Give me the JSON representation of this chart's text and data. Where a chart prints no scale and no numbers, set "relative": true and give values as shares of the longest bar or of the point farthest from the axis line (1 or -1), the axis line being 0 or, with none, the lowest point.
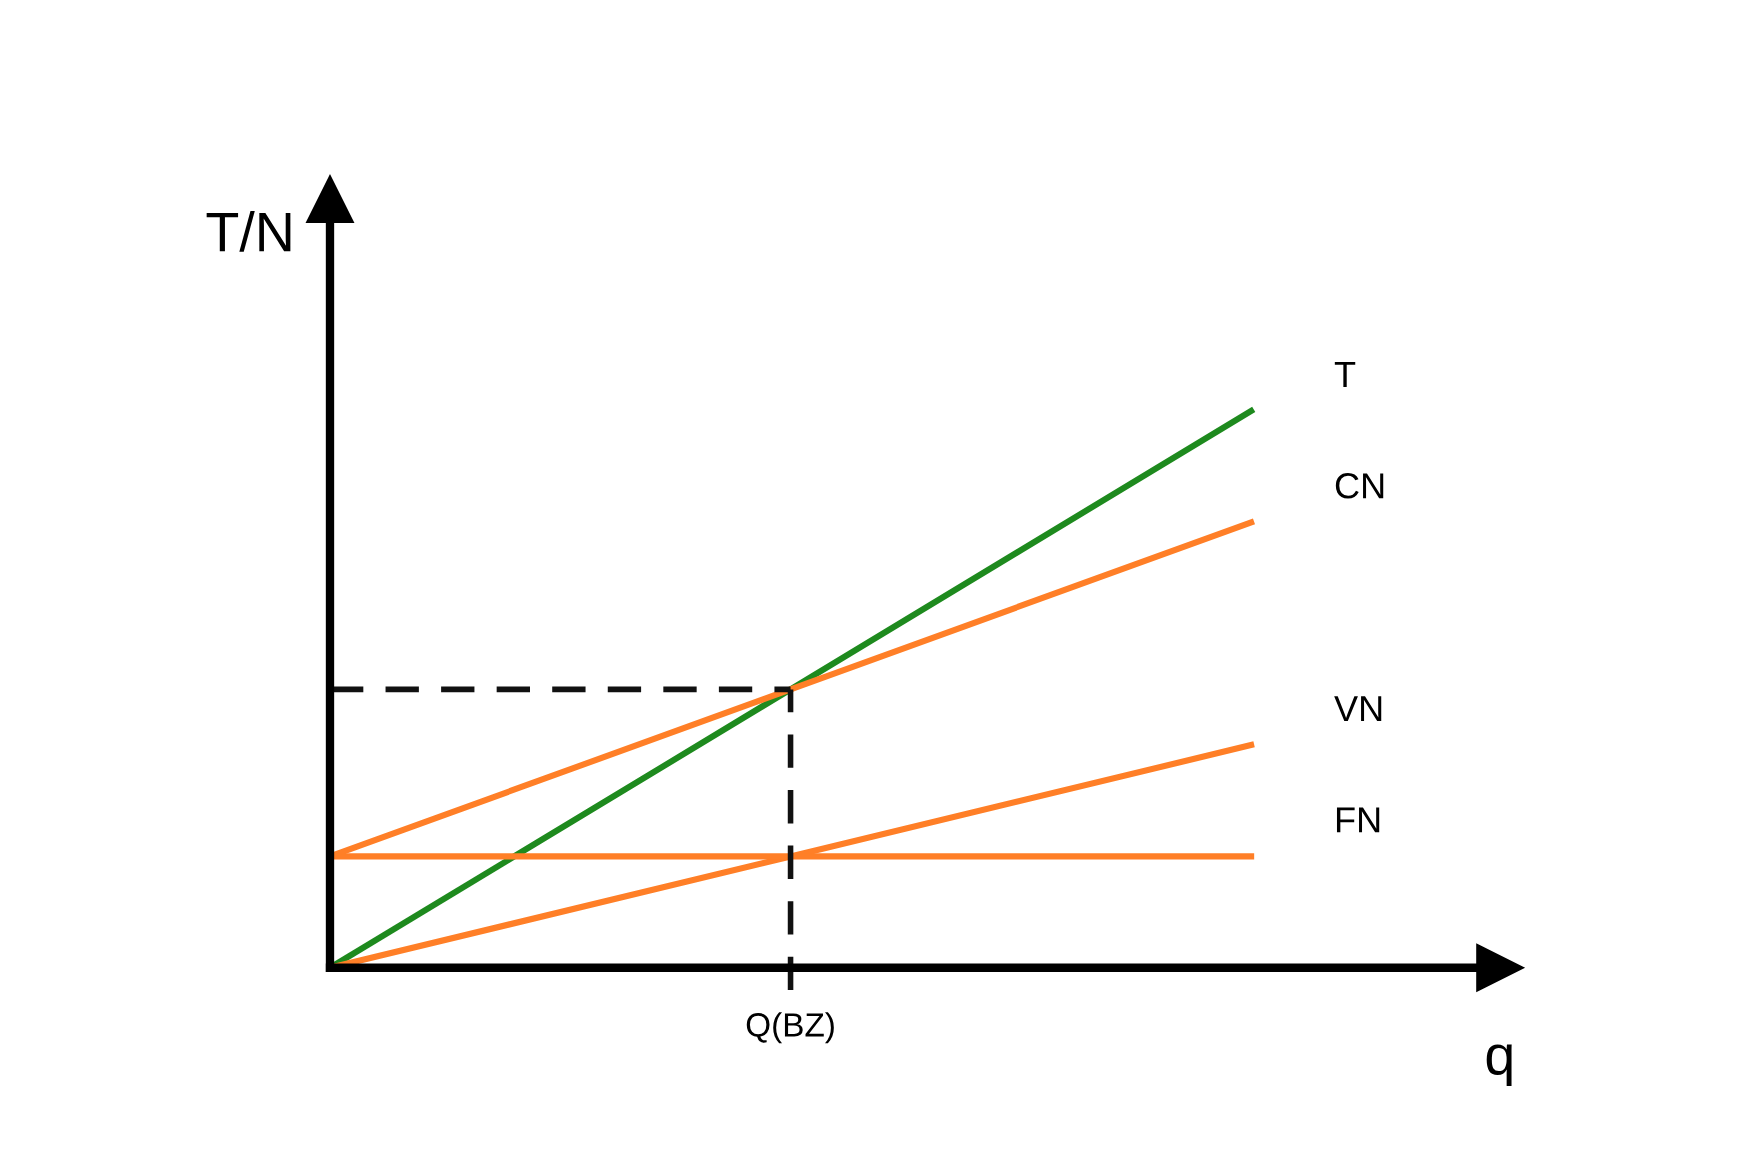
{
  "chart_data": {
    "type": "line",
    "relative": true,
    "xlabel": "q",
    "ylabel": "T/N",
    "categories": [
      null,
      null,
      null
    ],
    "annotations": [
      "Q(BZ)"
    ],
    "series": [
      {
        "name": "T",
        "color": "#1e8a1e",
        "values": [
          0,
          0.5,
          1
        ]
      },
      {
        "name": "CN",
        "color": "#ff7f27",
        "values": [
          0.2,
          0.5,
          0.8
        ]
      },
      {
        "name": "VN",
        "color": "#ff7f27",
        "values": [
          0,
          0.2,
          0.4
        ]
      },
      {
        "name": "FN",
        "color": "#ff7f27",
        "values": [
          0.2,
          0.2,
          0.2
        ]
      }
    ],
    "ref_lines": [
      {
        "axis": "y",
        "value": 0.5,
        "color": "#111111",
        "line_style": "dashed"
      }
    ]
  }
}
